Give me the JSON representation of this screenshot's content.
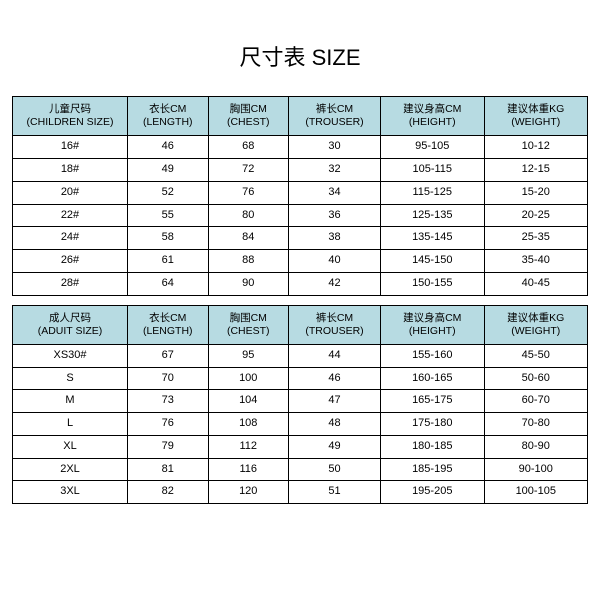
{
  "title": "尺寸表 SIZE",
  "header_bg": "#b7dbe2",
  "columns_children": [
    {
      "zh": "儿童尺码",
      "en": "(CHILDREN SIZE)"
    },
    {
      "zh": "衣长CM",
      "en": "(LENGTH)"
    },
    {
      "zh": "胸围CM",
      "en": "(CHEST)"
    },
    {
      "zh": "裤长CM",
      "en": "(TROUSER)"
    },
    {
      "zh": "建议身高CM",
      "en": "(HEIGHT)"
    },
    {
      "zh": "建议体重KG",
      "en": "(WEIGHT)"
    }
  ],
  "rows_children": [
    [
      "16#",
      "46",
      "68",
      "30",
      "95-105",
      "10-12"
    ],
    [
      "18#",
      "49",
      "72",
      "32",
      "105-115",
      "12-15"
    ],
    [
      "20#",
      "52",
      "76",
      "34",
      "115-125",
      "15-20"
    ],
    [
      "22#",
      "55",
      "80",
      "36",
      "125-135",
      "20-25"
    ],
    [
      "24#",
      "58",
      "84",
      "38",
      "135-145",
      "25-35"
    ],
    [
      "26#",
      "61",
      "88",
      "40",
      "145-150",
      "35-40"
    ],
    [
      "28#",
      "64",
      "90",
      "42",
      "150-155",
      "40-45"
    ]
  ],
  "columns_adult": [
    {
      "zh": "成人尺码",
      "en": "(ADUIT SIZE)"
    },
    {
      "zh": "衣长CM",
      "en": "(LENGTH)"
    },
    {
      "zh": "胸围CM",
      "en": "(CHEST)"
    },
    {
      "zh": "裤长CM",
      "en": "(TROUSER)"
    },
    {
      "zh": "建议身高CM",
      "en": "(HEIGHT)"
    },
    {
      "zh": "建议体重KG",
      "en": "(WEIGHT)"
    }
  ],
  "rows_adult": [
    [
      "XS30#",
      "67",
      "95",
      "44",
      "155-160",
      "45-50"
    ],
    [
      "S",
      "70",
      "100",
      "46",
      "160-165",
      "50-60"
    ],
    [
      "M",
      "73",
      "104",
      "47",
      "165-175",
      "60-70"
    ],
    [
      "L",
      "76",
      "108",
      "48",
      "175-180",
      "70-80"
    ],
    [
      "XL",
      "79",
      "112",
      "49",
      "180-185",
      "80-90"
    ],
    [
      "2XL",
      "81",
      "116",
      "50",
      "185-195",
      "90-100"
    ],
    [
      "3XL",
      "82",
      "120",
      "51",
      "195-205",
      "100-105"
    ]
  ]
}
